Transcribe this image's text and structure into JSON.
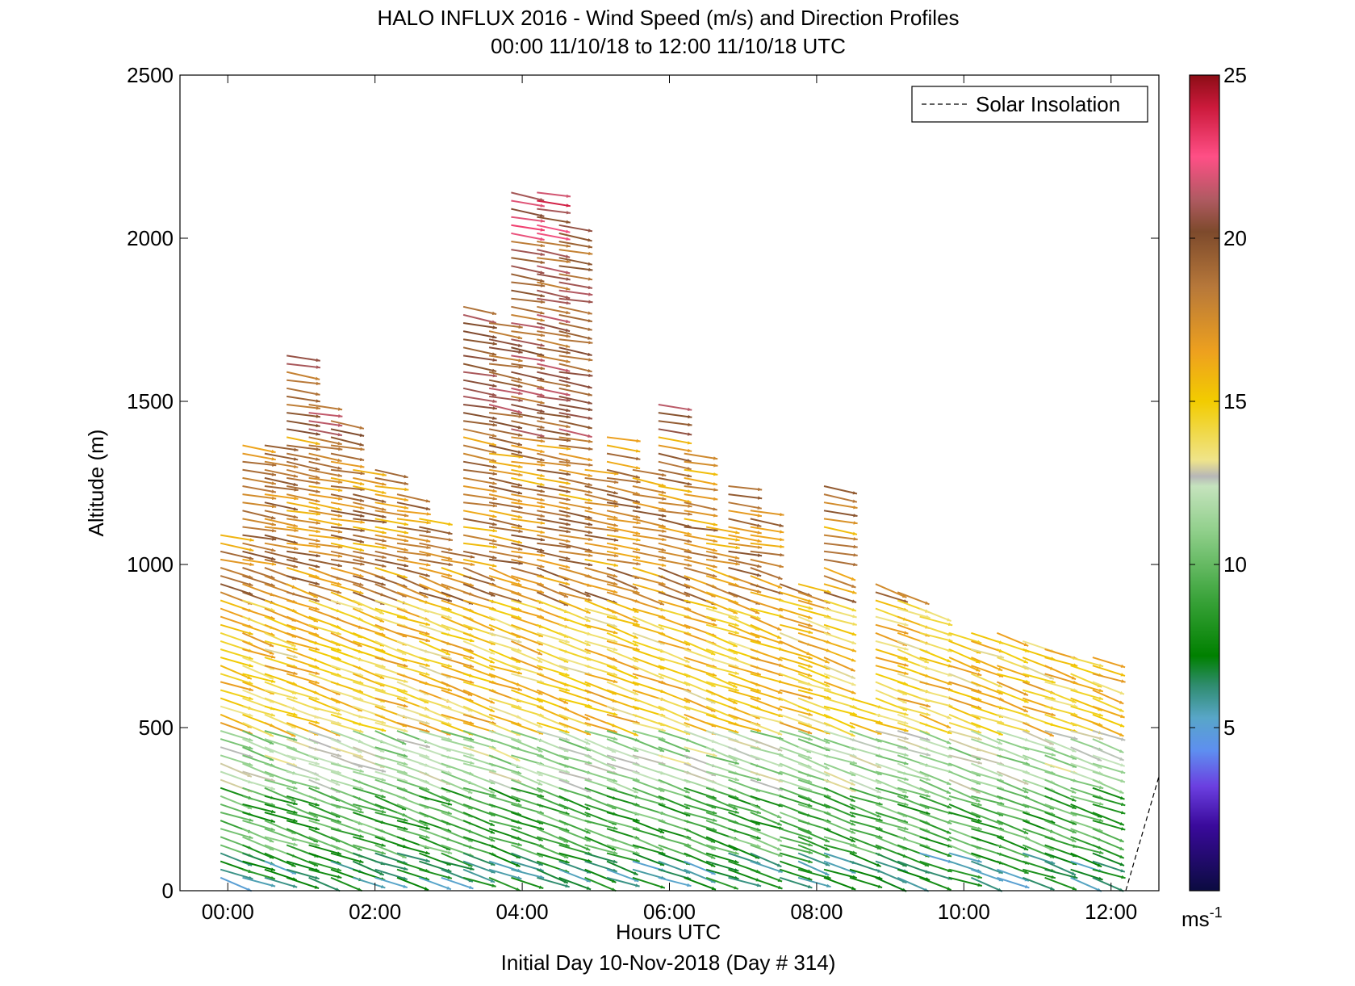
{
  "chart_data": {
    "type": "vector-field",
    "title": "HALO INFLUX 2016 - Wind Speed (m/s) and Direction Profiles",
    "subtitle": "00:00 11/10/18 to 12:00 11/10/18  UTC",
    "xlabel": "Hours UTC",
    "ylabel": "Altitude (m)",
    "footer": "Initial Day 10-Nov-2018 (Day # 314)",
    "xlim": [
      -0.65,
      12.65
    ],
    "ylim": [
      0,
      2500
    ],
    "x_ticks": [
      {
        "value": 0,
        "label": "00:00"
      },
      {
        "value": 2,
        "label": "02:00"
      },
      {
        "value": 4,
        "label": "04:00"
      },
      {
        "value": 6,
        "label": "06:00"
      },
      {
        "value": 8,
        "label": "08:00"
      },
      {
        "value": 10,
        "label": "10:00"
      },
      {
        "value": 12,
        "label": "12:00"
      }
    ],
    "y_ticks": [
      {
        "value": 0,
        "label": "0"
      },
      {
        "value": 500,
        "label": "500"
      },
      {
        "value": 1000,
        "label": "1000"
      },
      {
        "value": 1500,
        "label": "1500"
      },
      {
        "value": 2000,
        "label": "2000"
      },
      {
        "value": 2500,
        "label": "2500"
      }
    ],
    "grid": false,
    "legend": {
      "position": "top-right",
      "entries": [
        {
          "label": "Solar Insolation",
          "style": "dashed",
          "color": "#000000"
        }
      ]
    },
    "colorbar": {
      "range": [
        0,
        25
      ],
      "ticks": [
        {
          "value": 5,
          "label": "5"
        },
        {
          "value": 10,
          "label": "10"
        },
        {
          "value": 15,
          "label": "15"
        },
        {
          "value": 20,
          "label": "20"
        },
        {
          "value": 25,
          "label": "25"
        }
      ],
      "unit_label": "ms",
      "unit_exponent": "-1",
      "stops": [
        {
          "v": 0,
          "color": "#0b0b40"
        },
        {
          "v": 2,
          "color": "#3a0a9c"
        },
        {
          "v": 3.2,
          "color": "#6b3fe0"
        },
        {
          "v": 4.3,
          "color": "#5e8ff0"
        },
        {
          "v": 5.3,
          "color": "#58a6c8"
        },
        {
          "v": 6.3,
          "color": "#2f8c6e"
        },
        {
          "v": 7.2,
          "color": "#008000"
        },
        {
          "v": 9,
          "color": "#3ca43c"
        },
        {
          "v": 11,
          "color": "#8fcf8a"
        },
        {
          "v": 12.4,
          "color": "#c5e3bd"
        },
        {
          "v": 12.7,
          "color": "#b7b7b7"
        },
        {
          "v": 13.2,
          "color": "#efe48a"
        },
        {
          "v": 15,
          "color": "#f2cc00"
        },
        {
          "v": 16.5,
          "color": "#eea11e"
        },
        {
          "v": 18.5,
          "color": "#b7783a"
        },
        {
          "v": 20.2,
          "color": "#7d4a2c"
        },
        {
          "v": 21.2,
          "color": "#b05a62"
        },
        {
          "v": 22.5,
          "color": "#ff4f86"
        },
        {
          "v": 24,
          "color": "#cc1a3c"
        },
        {
          "v": 25,
          "color": "#8c0d16"
        }
      ]
    },
    "vector_profiles": {
      "times": [
        -0.1,
        0.2,
        0.5,
        0.8,
        1.1,
        1.4,
        1.7,
        2.0,
        2.3,
        2.6,
        2.9,
        3.2,
        3.55,
        3.85,
        4.2,
        4.5,
        4.85,
        5.15,
        5.5,
        5.85,
        6.2,
        6.5,
        6.8,
        7.1,
        7.5,
        7.75,
        8.1,
        8.45,
        8.8,
        9.1,
        9.4,
        9.8,
        10.1,
        10.45,
        10.8,
        11.1,
        11.45,
        11.75
      ],
      "tops": [
        1110,
        1380,
        1380,
        1640,
        1510,
        1460,
        1300,
        1290,
        1220,
        1140,
        1060,
        1790,
        1760,
        2140,
        2140,
        2050,
        1300,
        1390,
        1290,
        1500,
        1340,
        1130,
        1260,
        1180,
        960,
        940,
        1240,
        600,
        940,
        920,
        880,
        810,
        800,
        790,
        780,
        740,
        730,
        720
      ],
      "level_spacing_m": 25,
      "base_altitude_m": 40
    },
    "solar_insolation": {
      "x": [
        12.2,
        12.65
      ],
      "y": [
        0,
        350
      ]
    }
  }
}
